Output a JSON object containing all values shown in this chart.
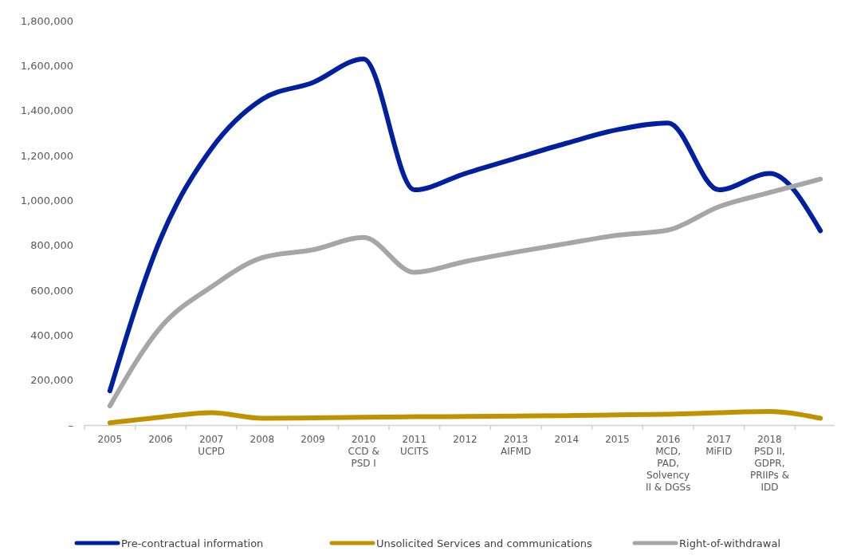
{
  "chart_data": {
    "type": "line",
    "categories": [
      "2005",
      "2006",
      "2007\nUCPD",
      "2008",
      "2009",
      "2010\nCCD &\nPSD I",
      "2011\nUCITS",
      "2012",
      "2013\nAIFMD",
      "2014",
      "2015",
      "2016\nMCD,\nPAD,\nSolvency\nII & DGSs",
      "2017\nMiFID",
      "2018\nPSD II,\nGDPR,\nPRIIPs &\nIDD",
      null
    ],
    "series": [
      {
        "name": "Pre-contractual information",
        "color": "#00209f",
        "values": [
          152000,
          830000,
          1230000,
          1450000,
          1525000,
          1630000,
          1047000,
          1120000,
          1188000,
          1255000,
          1315000,
          1345000,
          1047000,
          1120000,
          865000
        ]
      },
      {
        "name": "Unsolicited Services and communications",
        "color": "#c09200",
        "values": [
          10000,
          35000,
          55000,
          30000,
          32000,
          35000,
          37000,
          38000,
          40000,
          42000,
          45000,
          48000,
          55000,
          60000,
          30000
        ]
      },
      {
        "name": "Right-of-withdrawal",
        "color": "#a6a6a6",
        "values": [
          85000,
          435000,
          615000,
          745000,
          780000,
          835000,
          680000,
          728000,
          770000,
          808000,
          845000,
          868000,
          972000,
          1035000,
          1095000
        ]
      }
    ],
    "ylim": [
      0,
      1800000
    ],
    "yticks": [
      {
        "value": 0,
        "label": "–"
      },
      {
        "value": 200000,
        "label": "200,000"
      },
      {
        "value": 400000,
        "label": "400,000"
      },
      {
        "value": 600000,
        "label": "600,000"
      },
      {
        "value": 800000,
        "label": "800,000"
      },
      {
        "value": 1000000,
        "label": "1,000,000"
      },
      {
        "value": 1200000,
        "label": "1,200,000"
      },
      {
        "value": 1400000,
        "label": "1,400,000"
      },
      {
        "value": 1600000,
        "label": "1,600,000"
      },
      {
        "value": 1800000,
        "label": "1,800,000"
      }
    ],
    "grid": false,
    "legend": "bottom",
    "marker": "none",
    "line_style": "solid"
  }
}
